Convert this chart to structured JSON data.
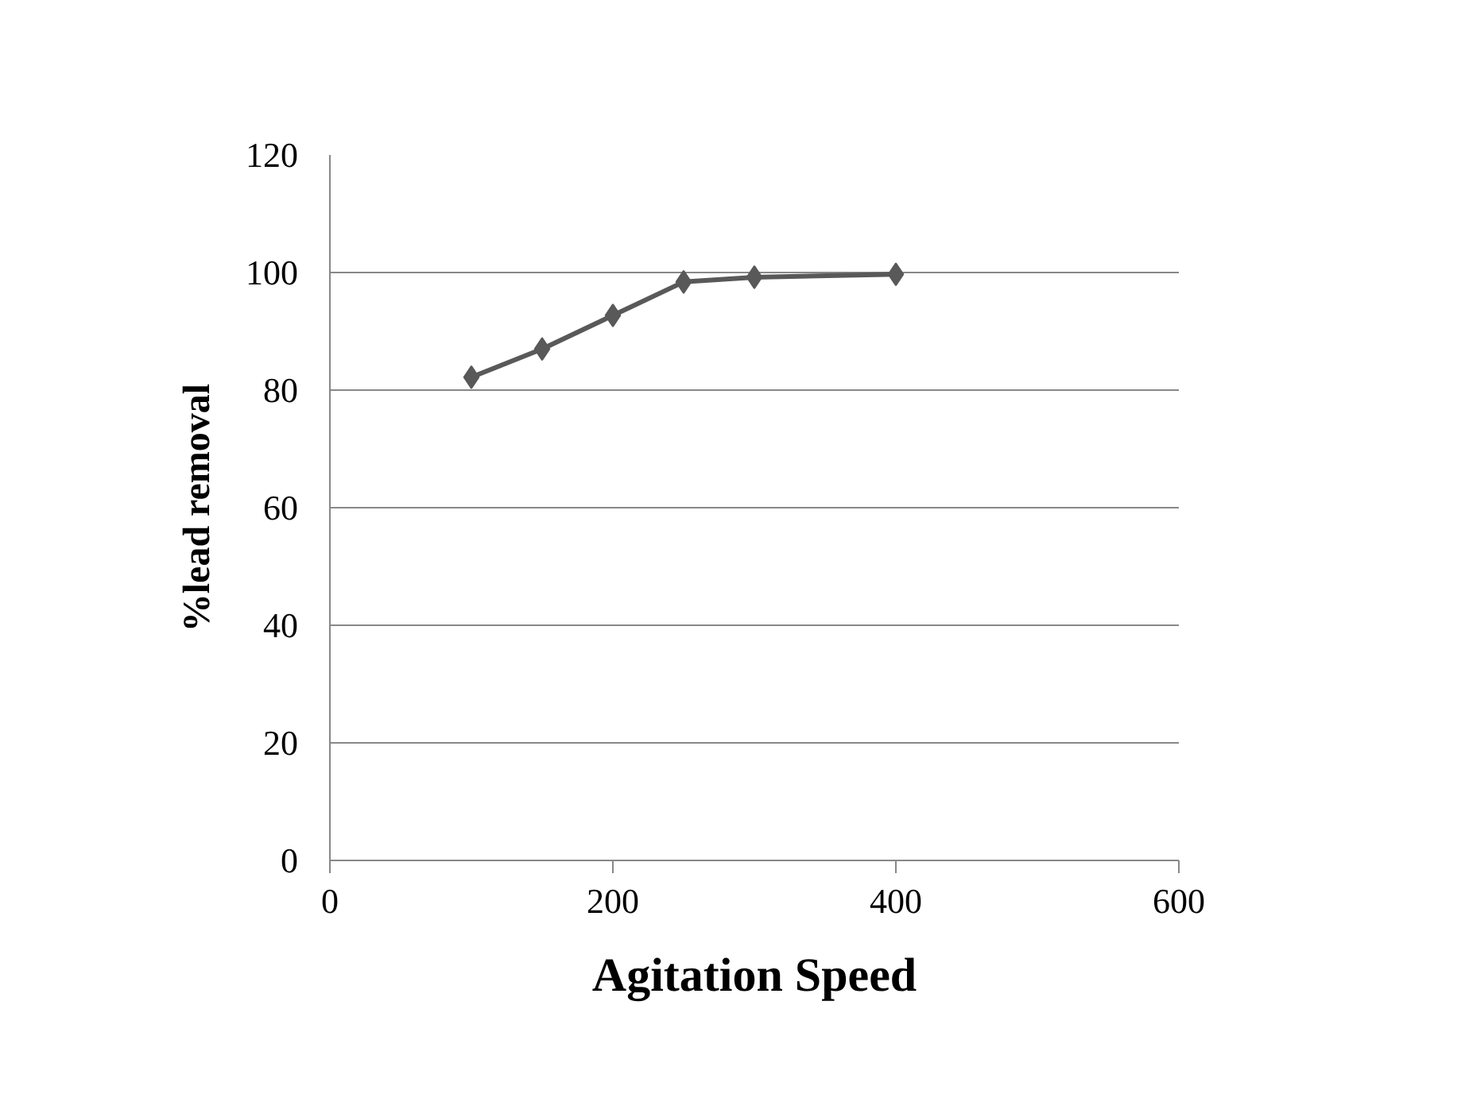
{
  "chart_data": {
    "type": "line",
    "xlabel": "Agitation Speed",
    "ylabel": "%lead removal",
    "x": [
      100,
      150,
      200,
      250,
      300,
      400
    ],
    "series": [
      {
        "color": "#595959",
        "values": [
          82.2,
          87.0,
          92.7,
          98.4,
          99.2,
          99.7
        ]
      }
    ],
    "xlim": [
      0,
      600
    ],
    "xticks": [
      0,
      200,
      400,
      600
    ],
    "ylim": [
      0,
      120
    ],
    "yticks": [
      0,
      20,
      40,
      60,
      80,
      100,
      120
    ],
    "grid": "y",
    "marker": "diamond",
    "line_style": "solid"
  }
}
